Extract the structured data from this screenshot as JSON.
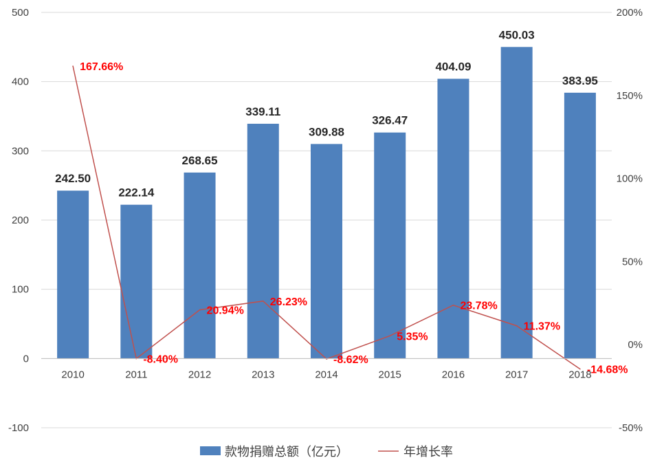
{
  "chart_data": {
    "type": "bar",
    "categories": [
      "2010",
      "2011",
      "2012",
      "2013",
      "2014",
      "2015",
      "2016",
      "2017",
      "2018"
    ],
    "series": [
      {
        "name": "款物捐赠总额（亿元）",
        "type": "bar",
        "axis": "left",
        "values": [
          242.5,
          222.14,
          268.65,
          339.11,
          309.88,
          326.47,
          404.09,
          450.03,
          383.95
        ],
        "labels": [
          "242.50",
          "222.14",
          "268.65",
          "339.11",
          "309.88",
          "326.47",
          "404.09",
          "450.03",
          "383.95"
        ],
        "color": "#4f81bd"
      },
      {
        "name": "年增长率",
        "type": "line",
        "axis": "right",
        "values": [
          167.66,
          -8.4,
          20.94,
          26.23,
          -8.62,
          5.35,
          23.78,
          11.37,
          -14.68
        ],
        "labels": [
          "167.66%",
          "-8.40%",
          "20.94%",
          "26.23%",
          "-8.62%",
          "5.35%",
          "23.78%",
          "11.37%",
          "-14.68%"
        ],
        "color": "#c0504d"
      }
    ],
    "y_left": {
      "min": -100,
      "max": 500,
      "ticks": [
        500,
        400,
        300,
        200,
        100,
        0,
        -100
      ],
      "tick_labels": [
        "500",
        "400",
        "300",
        "200",
        "100",
        "0",
        "-100"
      ]
    },
    "y_right": {
      "min": -50,
      "max": 200,
      "ticks": [
        200,
        150,
        100,
        50,
        0,
        -50
      ],
      "tick_labels": [
        "200%",
        "150%",
        "100%",
        "50%",
        "0%",
        "-50%"
      ]
    },
    "grid": true,
    "legend_position": "bottom",
    "label_color": "#ff0000"
  }
}
